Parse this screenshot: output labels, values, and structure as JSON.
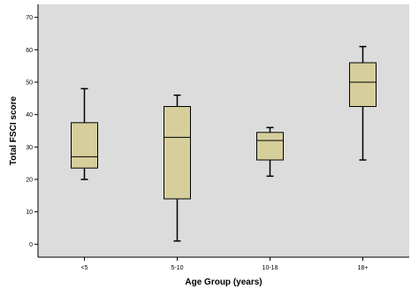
{
  "chart_data": {
    "type": "box",
    "xlabel": "Age Group (years)",
    "ylabel": "Total FSCI score",
    "ylim": [
      -4,
      74
    ],
    "yticks": [
      0,
      10,
      20,
      30,
      40,
      50,
      60,
      70
    ],
    "categories": [
      "<5",
      "5-10",
      "10-18",
      "18+"
    ],
    "boxes": [
      {
        "category": "<5",
        "min": 20,
        "q1": 23.5,
        "median": 27,
        "q3": 37.5,
        "max": 48
      },
      {
        "category": "5-10",
        "min": 1,
        "q1": 14,
        "median": 33,
        "q3": 42.5,
        "max": 46
      },
      {
        "category": "10-18",
        "min": 21,
        "q1": 26,
        "median": 32,
        "q3": 34.5,
        "max": 36
      },
      {
        "category": "18+",
        "min": 26,
        "q1": 42.5,
        "median": 50,
        "q3": 56,
        "max": 61
      }
    ],
    "colors": {
      "plot_background": "#dcdcdc",
      "box_fill": "#d6cf9c",
      "stroke": "#000000"
    },
    "grid": false
  }
}
